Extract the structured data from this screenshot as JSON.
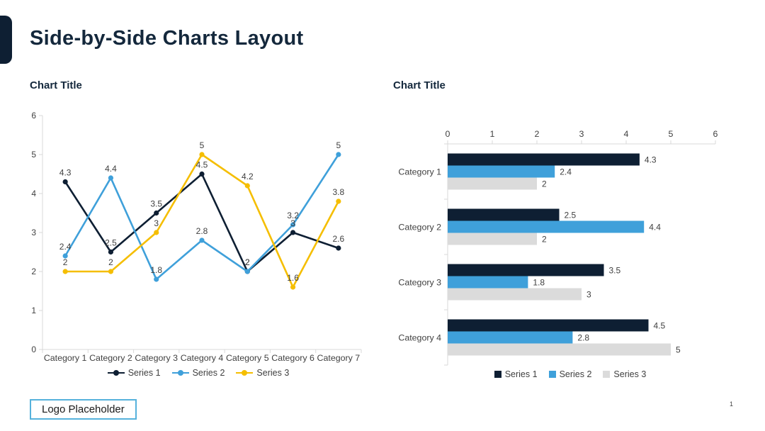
{
  "slide": {
    "title": "Side-by-Side Charts Layout",
    "logo_placeholder": "Logo Placeholder",
    "page_number": "1"
  },
  "colors": {
    "accent": "#0E1F33",
    "title_text": "#14283C",
    "axis_line": "#D9D9D9",
    "label_text": "#404040",
    "logo_border": "#56B2DC"
  },
  "chart_data": [
    {
      "type": "line",
      "title": "Chart Title",
      "categories": [
        "Category 1",
        "Category 2",
        "Category 3",
        "Category 4",
        "Category 5",
        "Category 6",
        "Category 7"
      ],
      "series": [
        {
          "name": "Series 1",
          "color": "#0E1F33",
          "values": [
            4.3,
            2.5,
            3.5,
            4.5,
            2,
            3,
            2.6
          ]
        },
        {
          "name": "Series 2",
          "color": "#3FA0DA",
          "values": [
            2.4,
            4.4,
            1.8,
            2.8,
            2,
            3.2,
            5
          ]
        },
        {
          "name": "Series 3",
          "color": "#F5BE00",
          "values": [
            2,
            2,
            3,
            5,
            4.2,
            1.6,
            3.8
          ]
        }
      ],
      "ylim": [
        0,
        6
      ],
      "yticks": [
        0,
        1,
        2,
        3,
        4,
        5,
        6
      ],
      "data_labels": true,
      "grid": false,
      "legend_position": "bottom"
    },
    {
      "type": "bar",
      "orientation": "horizontal",
      "title": "Chart Title",
      "categories": [
        "Category 1",
        "Category 2",
        "Category 3",
        "Category 4"
      ],
      "series": [
        {
          "name": "Series 1",
          "color": "#0E1F33",
          "values": [
            4.3,
            2.5,
            3.5,
            4.5
          ]
        },
        {
          "name": "Series 2",
          "color": "#3FA0DA",
          "values": [
            2.4,
            4.4,
            1.8,
            2.8
          ]
        },
        {
          "name": "Series 3",
          "color": "#DBDBDB",
          "values": [
            2,
            2,
            3,
            5
          ]
        }
      ],
      "xlim": [
        0,
        6
      ],
      "xticks": [
        0,
        1,
        2,
        3,
        4,
        5,
        6
      ],
      "value_axis_position": "top",
      "data_labels": true,
      "grid": false,
      "legend_position": "bottom"
    }
  ]
}
